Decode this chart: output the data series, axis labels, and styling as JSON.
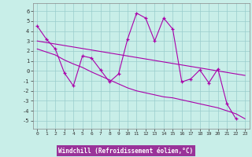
{
  "x_data": [
    0,
    1,
    2,
    3,
    4,
    5,
    6,
    7,
    8,
    9,
    10,
    11,
    12,
    13,
    14,
    15,
    16,
    17,
    18,
    19,
    20,
    21,
    22,
    23
  ],
  "y_main": [
    4.5,
    3.2,
    2.2,
    -0.2,
    -1.5,
    1.5,
    1.3,
    0.1,
    -1.1,
    -0.3,
    3.2,
    5.8,
    5.3,
    3.0,
    5.3,
    4.2,
    -1.1,
    -0.8,
    0.1,
    -1.2,
    0.2,
    -3.3,
    -4.8,
    null
  ],
  "y_upper": [
    3.0,
    2.85,
    2.7,
    2.55,
    2.4,
    2.25,
    2.1,
    1.95,
    1.8,
    1.65,
    1.5,
    1.35,
    1.2,
    1.05,
    0.9,
    0.75,
    0.6,
    0.45,
    0.3,
    0.15,
    0.0,
    -0.15,
    -0.3,
    -0.45
  ],
  "y_lower": [
    2.2,
    1.9,
    1.6,
    1.1,
    0.7,
    0.35,
    -0.1,
    -0.5,
    -0.9,
    -1.3,
    -1.7,
    -2.0,
    -2.2,
    -2.4,
    -2.6,
    -2.7,
    -2.9,
    -3.1,
    -3.3,
    -3.5,
    -3.7,
    -4.0,
    -4.3,
    -4.8
  ],
  "line_color": "#aa00aa",
  "bg_color": "#c8eee8",
  "grid_color": "#99cccc",
  "xlabel": "Windchill (Refroidissement éolien,°C)",
  "xlabel_bg": "#993399",
  "xlabel_fg": "#ffffff",
  "ylim": [
    -5.8,
    6.8
  ],
  "xlim": [
    -0.5,
    23.5
  ],
  "yticks": [
    -5,
    -4,
    -3,
    -2,
    -1,
    0,
    1,
    2,
    3,
    4,
    5,
    6
  ],
  "xticks": [
    0,
    1,
    2,
    3,
    4,
    5,
    6,
    7,
    8,
    9,
    10,
    11,
    12,
    13,
    14,
    15,
    16,
    17,
    18,
    19,
    20,
    21,
    22,
    23
  ]
}
